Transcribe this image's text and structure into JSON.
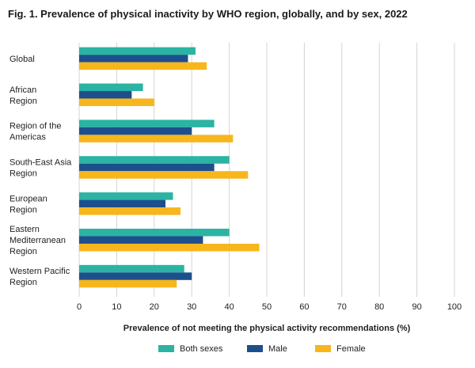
{
  "figure": {
    "title": "Fig. 1. Prevalence of physical inactivity by WHO region, globally, and by sex, 2022"
  },
  "chart_data": {
    "type": "bar",
    "orientation": "horizontal",
    "title": "Fig. 1. Prevalence of physical inactivity by WHO region, globally, and by sex, 2022",
    "xlabel": "Prevalence of not meeting the physical activity recommendations (%)",
    "ylabel": "",
    "xlim": [
      0,
      100
    ],
    "xticks": [
      0,
      10,
      20,
      30,
      40,
      50,
      60,
      70,
      80,
      90,
      100
    ],
    "grid": true,
    "legend_position": "bottom",
    "categories": [
      [
        "Global"
      ],
      [
        "African",
        "Region"
      ],
      [
        "Region of the",
        "Americas"
      ],
      [
        "South-East Asia",
        "Region"
      ],
      [
        "European",
        "Region"
      ],
      [
        "Eastern",
        "Mediterranean",
        "Region"
      ],
      [
        "Western Pacific",
        "Region"
      ]
    ],
    "series": [
      {
        "name": "Both sexes",
        "color": "#2bb3a3",
        "values": [
          31,
          17,
          36,
          40,
          25,
          40,
          28
        ]
      },
      {
        "name": "Male",
        "color": "#1d4f8c",
        "values": [
          29,
          14,
          30,
          36,
          23,
          33,
          30
        ]
      },
      {
        "name": "Female",
        "color": "#f7b61c",
        "values": [
          34,
          20,
          41,
          45,
          27,
          48,
          26
        ]
      }
    ]
  }
}
